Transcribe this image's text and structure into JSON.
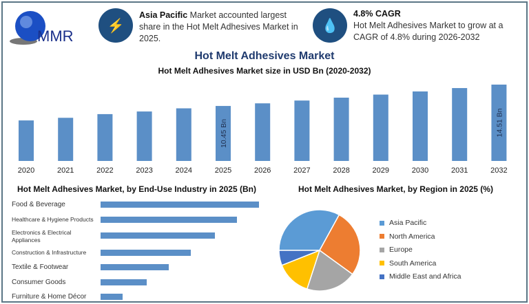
{
  "logo": {
    "text": "MMR"
  },
  "callouts": [
    {
      "icon": "lightning-icon",
      "bold": "Asia Pacific",
      "text": " Market accounted largest share in the Hot Melt Adhesives Market in 2025."
    },
    {
      "icon": "drop-icon",
      "bold": "4.8% CAGR",
      "text": "Hot Melt Adhesives Market to grow at a CAGR of 4.8% during 2026-2032"
    }
  ],
  "main_title": "Hot Melt Adhesives Market",
  "colors": {
    "bar": "#5b8fc7",
    "title": "#1f3a6e",
    "frame": "#5a7585"
  },
  "chart_data": [
    {
      "type": "bar",
      "title": "Hot Melt Adhesives Market size in USD Bn (2020-2032)",
      "categories": [
        "2020",
        "2021",
        "2022",
        "2023",
        "2024",
        "2025",
        "2026",
        "2027",
        "2028",
        "2029",
        "2030",
        "2031",
        "2032"
      ],
      "values": [
        7.7,
        8.2,
        8.9,
        9.4,
        10.0,
        10.45,
        10.95,
        11.48,
        12.03,
        12.61,
        13.21,
        13.85,
        14.51
      ],
      "data_labels": {
        "2025": "10.45 Bn",
        "2032": "14.51 Bn"
      },
      "ylim": [
        0,
        15
      ],
      "grid": false
    },
    {
      "type": "bar",
      "orientation": "horizontal",
      "title": "Hot Melt Adhesives Market, by End-Use Industry in 2025 (Bn)",
      "categories": [
        "Food & Beverage",
        "Healthcare & Hygiene Products",
        "Electronics & Electrical Appliances",
        "Construction & Infrastructure",
        "Textile & Footwear",
        "Consumer Goods",
        "Furniture & Home Décor"
      ],
      "values": [
        1.0,
        0.86,
        0.72,
        0.57,
        0.43,
        0.29,
        0.14
      ]
    },
    {
      "type": "pie",
      "title": "Hot Melt Adhesives Market, by Region in 2025 (%)",
      "categories": [
        "Asia Pacific",
        "North America",
        "Europe",
        "South America",
        "Middle East and Africa"
      ],
      "values": [
        33,
        27,
        20,
        14,
        6
      ],
      "colors": [
        "#5b9bd5",
        "#ed7d31",
        "#a5a5a5",
        "#ffc000",
        "#4472c4"
      ],
      "legend": "right"
    }
  ]
}
